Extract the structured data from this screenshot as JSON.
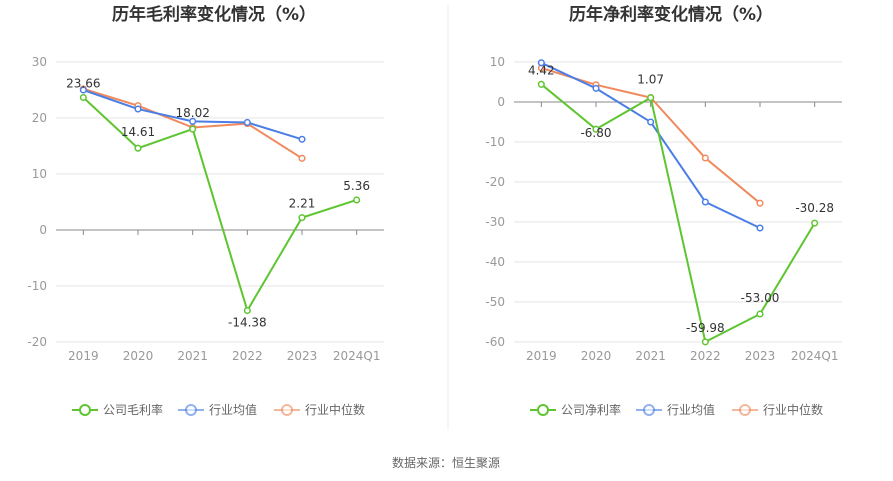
{
  "source_note": "数据来源：恒生聚源",
  "chart_data": [
    {
      "type": "line",
      "title": "历年毛利率变化情况（%）",
      "categories": [
        "2019",
        "2020",
        "2021",
        "2022",
        "2023",
        "2024Q1"
      ],
      "ylim": [
        -20,
        30
      ],
      "yticks": [
        30,
        20,
        10,
        0,
        -10,
        -20
      ],
      "grid": true,
      "legend_position": "bottom",
      "series": [
        {
          "name": "公司毛利率",
          "color": "#5ec530",
          "values": [
            23.66,
            14.61,
            18.02,
            -14.38,
            2.21,
            5.36
          ],
          "labels": [
            "23.66",
            "14.61",
            "18.02",
            "-14.38",
            "2.21",
            "5.36"
          ]
        },
        {
          "name": "行业均值",
          "color": "#4a7ee6",
          "values": [
            25.0,
            21.6,
            19.4,
            19.2,
            16.2,
            null
          ]
        },
        {
          "name": "行业中位数",
          "color": "#f08a5d",
          "values": [
            25.2,
            22.2,
            18.3,
            19.0,
            12.8,
            null
          ]
        }
      ]
    },
    {
      "type": "line",
      "title": "历年净利率变化情况（%）",
      "categories": [
        "2019",
        "2020",
        "2021",
        "2022",
        "2023",
        "2024Q1"
      ],
      "ylim": [
        -60,
        10
      ],
      "yticks": [
        10,
        0,
        -10,
        -20,
        -30,
        -40,
        -50,
        -60
      ],
      "grid": true,
      "legend_position": "bottom",
      "series": [
        {
          "name": "公司净利率",
          "color": "#5ec530",
          "values": [
            4.42,
            -6.8,
            1.07,
            -59.98,
            -53.0,
            -30.28
          ],
          "labels": [
            "4.42",
            "-6.80",
            "1.07",
            "-59.98",
            "-53.00",
            "-30.28"
          ]
        },
        {
          "name": "行业均值",
          "color": "#4a7ee6",
          "values": [
            9.8,
            3.4,
            -5.0,
            -25.0,
            -31.5,
            null
          ]
        },
        {
          "name": "行业中位数",
          "color": "#f08a5d",
          "values": [
            8.5,
            4.3,
            1.1,
            -14.0,
            -25.3,
            null
          ]
        }
      ]
    }
  ]
}
